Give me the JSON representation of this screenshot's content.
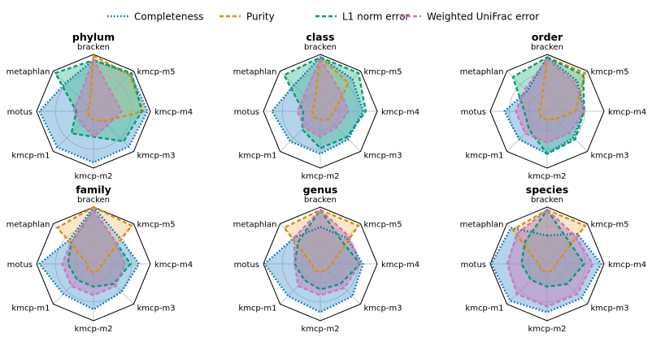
{
  "chart_data": {
    "type": "radar",
    "axes": [
      "bracken",
      "kmcp-m5",
      "kmcp-m4",
      "kmcp-m3",
      "kmcp-m2",
      "kmcp-m1",
      "motus",
      "metaphlan"
    ],
    "rlim": [
      0,
      1
    ],
    "grid": true,
    "legend_position": "top",
    "series_styles": [
      {
        "name": "Completeness",
        "color": "#0173b2",
        "fill": "#56a0d3",
        "dash": "dotted"
      },
      {
        "name": "Purity",
        "color": "#de8f05",
        "fill": "#f5c98a",
        "dash": "dashed"
      },
      {
        "name": "L1 norm error",
        "color": "#029e73",
        "fill": "#4fbf9a",
        "dash": "dashed"
      },
      {
        "name": "Weighted UniFrac error",
        "color": "#cc78bc",
        "fill": "#cc78bc",
        "dash": "dashed"
      }
    ],
    "panels": [
      {
        "title": "phylum",
        "series": [
          {
            "name": "Completeness",
            "values": [
              0.9,
              0.92,
              0.95,
              0.88,
              0.9,
              0.9,
              0.95,
              0.7
            ]
          },
          {
            "name": "Purity",
            "values": [
              0.98,
              0.9,
              0.88,
              0.25,
              0.15,
              0.1,
              0.12,
              0.1
            ]
          },
          {
            "name": "L1 norm error",
            "values": [
              0.9,
              0.95,
              0.85,
              0.75,
              0.45,
              0.55,
              0.3,
              0.95
            ]
          },
          {
            "name": "Weighted UniFrac error",
            "values": [
              0.92,
              0.45,
              0.5,
              0.35,
              0.45,
              0.3,
              0.35,
              0.35
            ]
          }
        ]
      },
      {
        "title": "class",
        "series": [
          {
            "name": "Completeness",
            "values": [
              0.95,
              0.8,
              0.75,
              0.7,
              0.75,
              0.75,
              0.85,
              0.65
            ]
          },
          {
            "name": "Purity",
            "values": [
              0.95,
              0.7,
              0.25,
              0.2,
              0.15,
              0.15,
              0.15,
              0.15
            ]
          },
          {
            "name": "L1 norm error",
            "values": [
              0.95,
              0.95,
              0.8,
              0.65,
              0.65,
              0.45,
              0.3,
              0.9
            ]
          },
          {
            "name": "Weighted UniFrac error",
            "values": [
              0.92,
              0.5,
              0.5,
              0.4,
              0.45,
              0.4,
              0.4,
              0.4
            ]
          }
        ]
      },
      {
        "title": "order",
        "series": [
          {
            "name": "Completeness",
            "values": [
              0.95,
              0.75,
              0.65,
              0.65,
              0.75,
              0.7,
              0.75,
              0.5
            ]
          },
          {
            "name": "Purity",
            "values": [
              0.95,
              0.95,
              0.5,
              0.2,
              0.15,
              0.15,
              0.15,
              0.15
            ]
          },
          {
            "name": "L1 norm error",
            "values": [
              0.95,
              0.9,
              0.65,
              0.7,
              0.75,
              0.45,
              0.4,
              0.85
            ]
          },
          {
            "name": "Weighted UniFrac error",
            "values": [
              0.92,
              0.7,
              0.65,
              0.55,
              0.55,
              0.55,
              0.55,
              0.55
            ]
          }
        ]
      },
      {
        "title": "family",
        "series": [
          {
            "name": "Completeness",
            "values": [
              1.0,
              0.65,
              0.8,
              0.7,
              0.8,
              0.75,
              0.95,
              0.6
            ]
          },
          {
            "name": "Purity",
            "values": [
              1.0,
              0.95,
              0.15,
              0.15,
              0.15,
              0.15,
              0.1,
              0.9
            ]
          },
          {
            "name": "L1 norm error",
            "values": [
              0.95,
              0.55,
              0.65,
              0.5,
              0.4,
              0.4,
              0.45,
              0.55
            ]
          },
          {
            "name": "Weighted UniFrac error",
            "values": [
              0.95,
              0.55,
              0.55,
              0.55,
              0.55,
              0.55,
              0.55,
              0.55
            ]
          }
        ]
      },
      {
        "title": "genus",
        "series": [
          {
            "name": "Completeness",
            "values": [
              0.65,
              0.65,
              0.75,
              0.8,
              0.85,
              0.8,
              0.98,
              0.65
            ]
          },
          {
            "name": "Purity",
            "values": [
              0.95,
              0.95,
              0.2,
              0.15,
              0.15,
              0.15,
              0.15,
              0.9
            ]
          },
          {
            "name": "L1 norm error",
            "values": [
              0.95,
              0.55,
              0.7,
              0.5,
              0.45,
              0.4,
              0.45,
              0.55
            ]
          },
          {
            "name": "Weighted UniFrac error",
            "values": [
              0.95,
              0.7,
              0.7,
              0.6,
              0.55,
              0.55,
              0.45,
              0.65
            ]
          }
        ]
      },
      {
        "title": "species",
        "series": [
          {
            "name": "Completeness",
            "values": [
              0.5,
              0.75,
              0.95,
              0.85,
              0.85,
              0.92,
              0.98,
              0.9
            ]
          },
          {
            "name": "Purity",
            "values": [
              0.95,
              0.95,
              0.15,
              0.15,
              0.15,
              0.15,
              0.15,
              0.85
            ]
          },
          {
            "name": "L1 norm error",
            "values": [
              0.95,
              0.55,
              0.65,
              0.5,
              0.4,
              0.4,
              0.45,
              0.55
            ]
          },
          {
            "name": "Weighted UniFrac error",
            "values": [
              0.95,
              0.7,
              0.8,
              0.75,
              0.75,
              0.75,
              0.7,
              0.75
            ]
          }
        ]
      }
    ]
  }
}
